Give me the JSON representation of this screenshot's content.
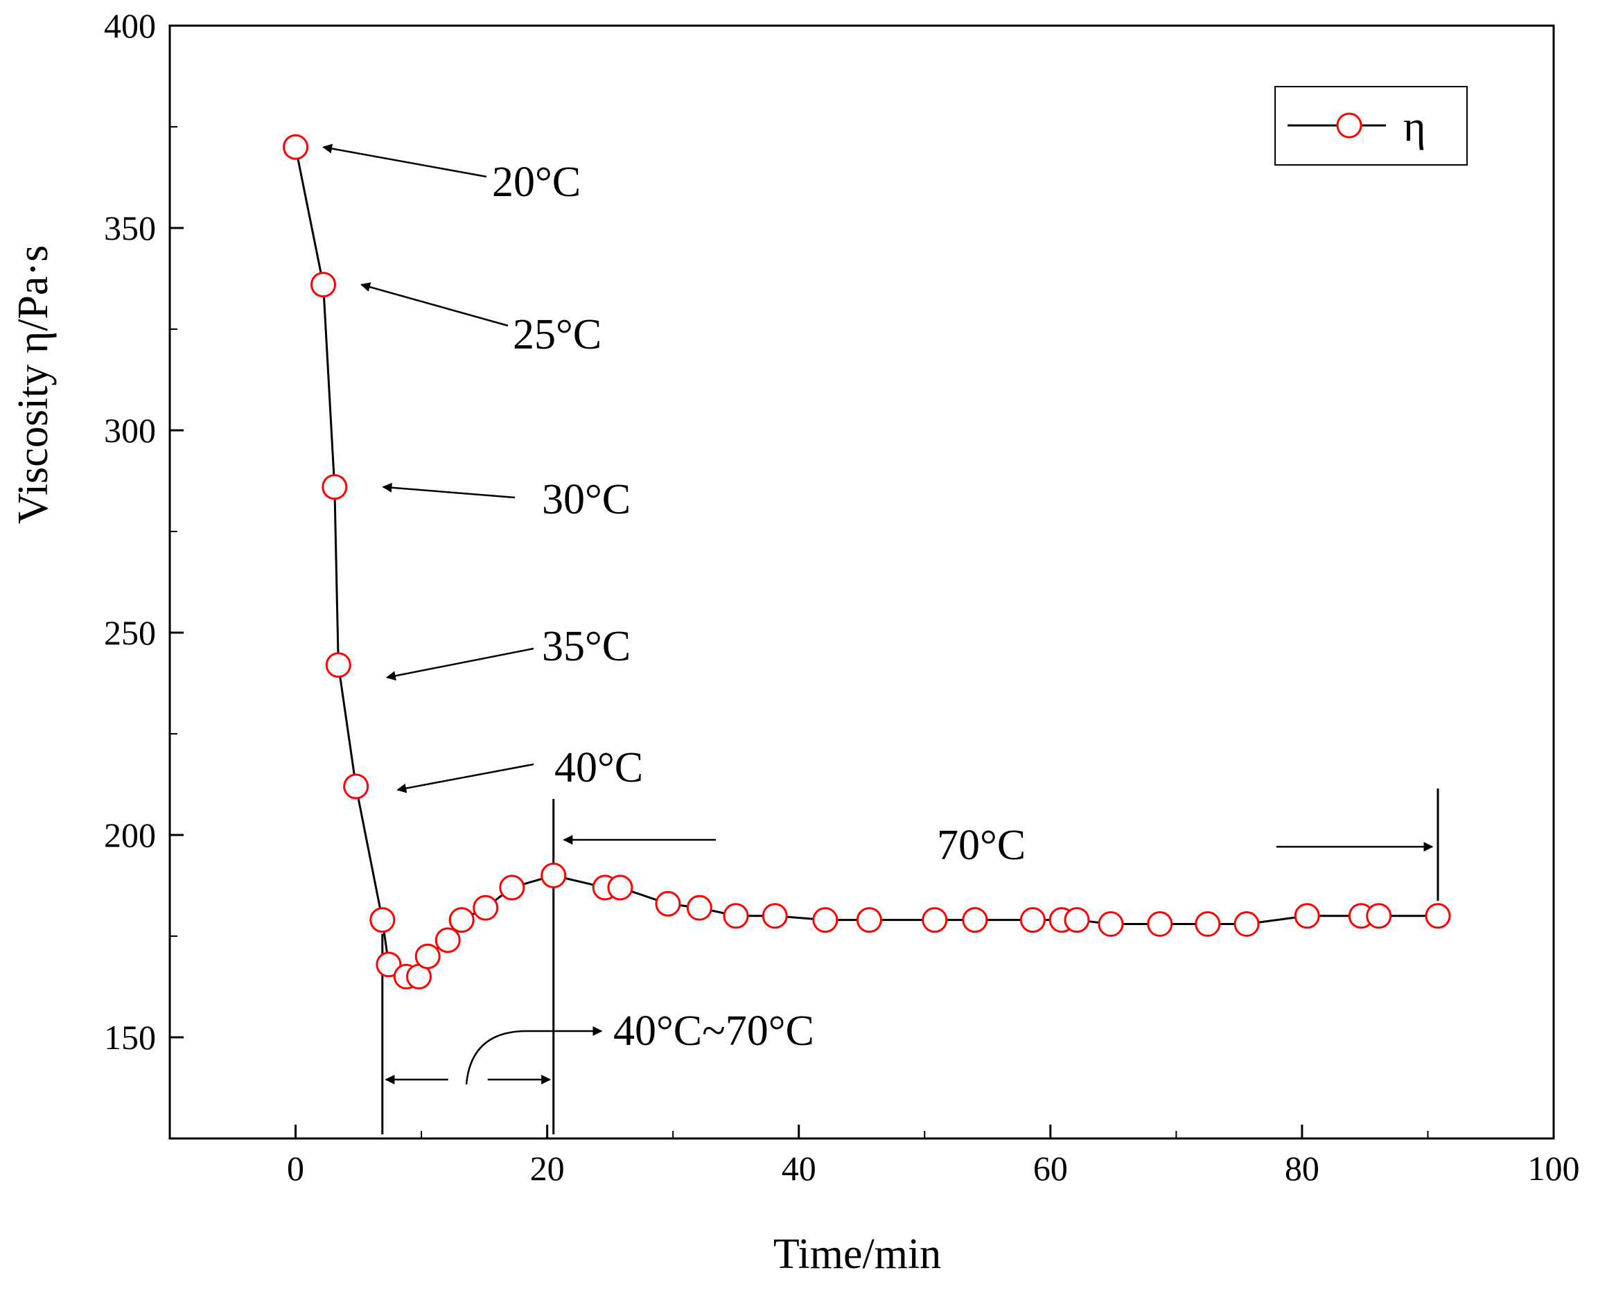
{
  "chart_data": {
    "type": "line",
    "title": "",
    "xlabel": "Time/min",
    "ylabel": "Viscosity η/Pa·s",
    "xlim": [
      -10,
      100
    ],
    "ylim": [
      125,
      400
    ],
    "xticks": [
      0,
      20,
      40,
      60,
      80,
      100
    ],
    "yticks": [
      150,
      200,
      250,
      300,
      350,
      400
    ],
    "legend": {
      "position": "top-right",
      "label": "η"
    },
    "colors": {
      "line": "#000000",
      "marker": "#ff0000",
      "axis": "#000000"
    },
    "series": [
      {
        "name": "η",
        "marker": "open-circle",
        "x": [
          0,
          2.2,
          3.1,
          3.4,
          4.8,
          6.9,
          7.4,
          8.8,
          9.8,
          10.5,
          12.1,
          13.2,
          15.1,
          17.2,
          20.5,
          24.6,
          25.8,
          29.6,
          32.1,
          35.0,
          38.1,
          42.1,
          45.6,
          50.8,
          54.0,
          58.6,
          60.9,
          62.1,
          64.8,
          68.7,
          72.5,
          75.6,
          80.4,
          84.7,
          86.1,
          90.8
        ],
        "y": [
          370,
          336,
          286,
          242,
          212,
          179,
          168,
          165,
          165,
          170,
          174,
          179,
          182,
          187,
          190,
          187,
          187,
          183,
          182,
          180,
          180,
          179,
          179,
          179,
          179,
          179,
          179,
          179,
          178,
          178,
          178,
          178,
          180,
          180,
          180,
          180
        ]
      }
    ],
    "annotations": [
      {
        "text": "20°C",
        "target_x": 0,
        "target_y": 370
      },
      {
        "text": "25°C",
        "target_x": 2.2,
        "target_y": 336
      },
      {
        "text": "30°C",
        "target_x": 3.1,
        "target_y": 286
      },
      {
        "text": "35°C",
        "target_x": 3.4,
        "target_y": 242
      },
      {
        "text": "40°C",
        "target_x": 4.8,
        "target_y": 212
      },
      {
        "text": "40°C~70°C",
        "range": [
          6.9,
          20.5
        ]
      },
      {
        "text": "70°C",
        "range": [
          20.5,
          90.8
        ]
      }
    ]
  }
}
